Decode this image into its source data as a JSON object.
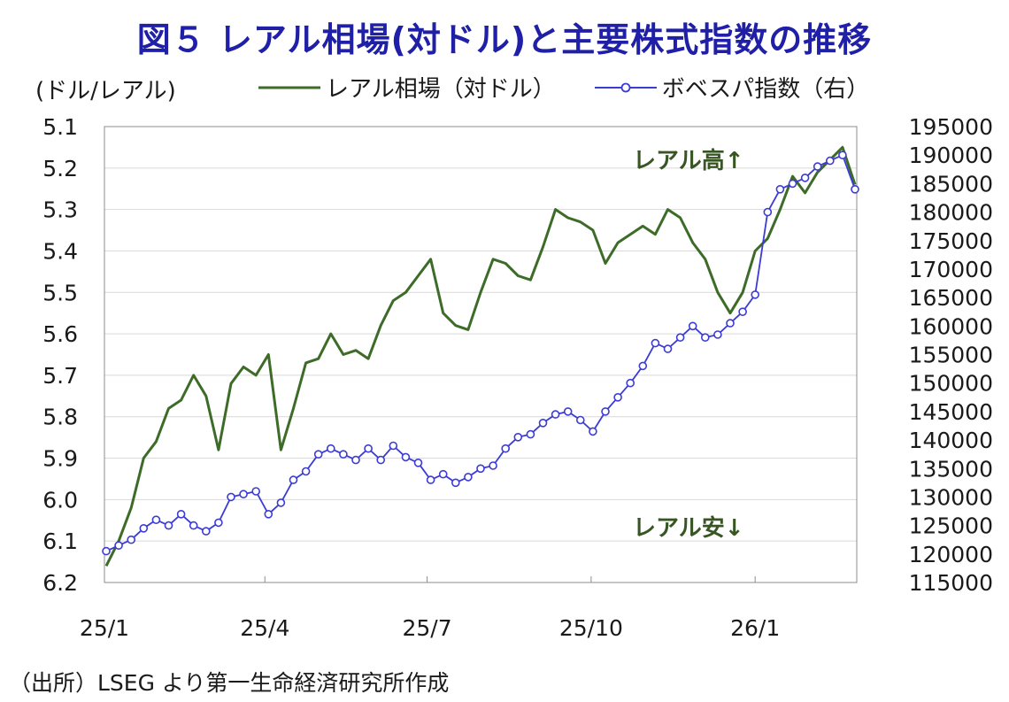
{
  "title": "図５ レアル相場(対ドル)と主要株式指数の推移",
  "left_unit": "(ドル/レアル)",
  "source": "（出所）LSEG より第一生命経済研究所作成",
  "colors": {
    "real": "#3d6b28",
    "bovespa": "#3b3bd6",
    "title": "#1f1fa8",
    "annotation": "#375623",
    "grid": "#d9d9d9"
  },
  "chart_data": {
    "type": "line",
    "x": [
      "2025-01-02",
      "2025-01-09",
      "2025-01-16",
      "2025-01-23",
      "2025-01-30",
      "2025-02-06",
      "2025-02-13",
      "2025-02-20",
      "2025-02-27",
      "2025-03-06",
      "2025-03-13",
      "2025-03-20",
      "2025-03-27",
      "2025-04-03",
      "2025-04-10",
      "2025-04-17",
      "2025-04-24",
      "2025-05-01",
      "2025-05-08",
      "2025-05-15",
      "2025-05-22",
      "2025-05-29",
      "2025-06-05",
      "2025-06-12",
      "2025-06-19",
      "2025-06-26",
      "2025-07-03",
      "2025-07-10",
      "2025-07-17",
      "2025-07-24",
      "2025-07-31",
      "2025-08-07",
      "2025-08-14",
      "2025-08-21",
      "2025-08-28",
      "2025-09-04",
      "2025-09-11",
      "2025-09-18",
      "2025-09-25",
      "2025-10-02",
      "2025-10-09",
      "2025-10-16",
      "2025-10-23",
      "2025-10-30",
      "2025-11-06",
      "2025-11-13",
      "2025-11-20",
      "2025-11-27",
      "2025-12-04",
      "2025-12-11",
      "2025-12-18",
      "2025-12-25",
      "2026-01-01",
      "2026-01-08",
      "2026-01-15",
      "2026-01-22",
      "2026-01-29",
      "2026-02-05",
      "2026-02-12",
      "2026-02-19",
      "2026-02-26"
    ],
    "series": [
      {
        "name": "レアル相場（対ドル）",
        "axis": "left",
        "marker": "none",
        "values": [
          6.16,
          6.1,
          6.02,
          5.9,
          5.86,
          5.78,
          5.76,
          5.7,
          5.75,
          5.88,
          5.72,
          5.68,
          5.7,
          5.65,
          5.88,
          5.78,
          5.67,
          5.66,
          5.6,
          5.65,
          5.64,
          5.66,
          5.58,
          5.52,
          5.5,
          5.46,
          5.42,
          5.55,
          5.58,
          5.59,
          5.5,
          5.42,
          5.43,
          5.46,
          5.47,
          5.39,
          5.3,
          5.32,
          5.33,
          5.35,
          5.43,
          5.38,
          5.36,
          5.34,
          5.36,
          5.3,
          5.32,
          5.38,
          5.42,
          5.5,
          5.55,
          5.5,
          5.4,
          5.37,
          5.3,
          5.22,
          5.26,
          5.21,
          5.18,
          5.15,
          5.24
        ]
      },
      {
        "name": "ボベスパ指数（右）",
        "axis": "right",
        "marker": "circle",
        "values": [
          120500,
          121500,
          122500,
          124500,
          126000,
          125000,
          127000,
          125000,
          124000,
          125500,
          130000,
          130500,
          131000,
          127000,
          129000,
          133000,
          134500,
          137500,
          138500,
          137500,
          136500,
          138500,
          136500,
          139000,
          137000,
          136000,
          133000,
          134000,
          132500,
          133500,
          135000,
          135500,
          138500,
          140500,
          141000,
          143000,
          144500,
          145000,
          143500,
          141500,
          145000,
          147500,
          150000,
          153000,
          157000,
          156000,
          158000,
          160000,
          158000,
          158500,
          160500,
          162500,
          165500,
          180000,
          184000,
          185000,
          186000,
          188000,
          189000,
          190000,
          184000
        ]
      }
    ],
    "x_ticks": [
      "25/1",
      "25/4",
      "25/7",
      "25/10",
      "26/1"
    ],
    "y_left": {
      "min": 5.1,
      "max": 6.2,
      "inverted": true,
      "ticks": [
        "5.1",
        "5.2",
        "5.3",
        "5.4",
        "5.5",
        "5.6",
        "5.7",
        "5.8",
        "5.9",
        "6.0",
        "6.1",
        "6.2"
      ]
    },
    "y_right": {
      "min": 115000,
      "max": 195000,
      "ticks": [
        "195000",
        "190000",
        "185000",
        "180000",
        "175000",
        "170000",
        "165000",
        "160000",
        "155000",
        "150000",
        "145000",
        "140000",
        "135000",
        "130000",
        "125000",
        "120000",
        "115000"
      ]
    },
    "annotations": [
      {
        "text": "レアル高↑"
      },
      {
        "text": "レアル安↓"
      }
    ],
    "grid": true,
    "legend": "top"
  }
}
